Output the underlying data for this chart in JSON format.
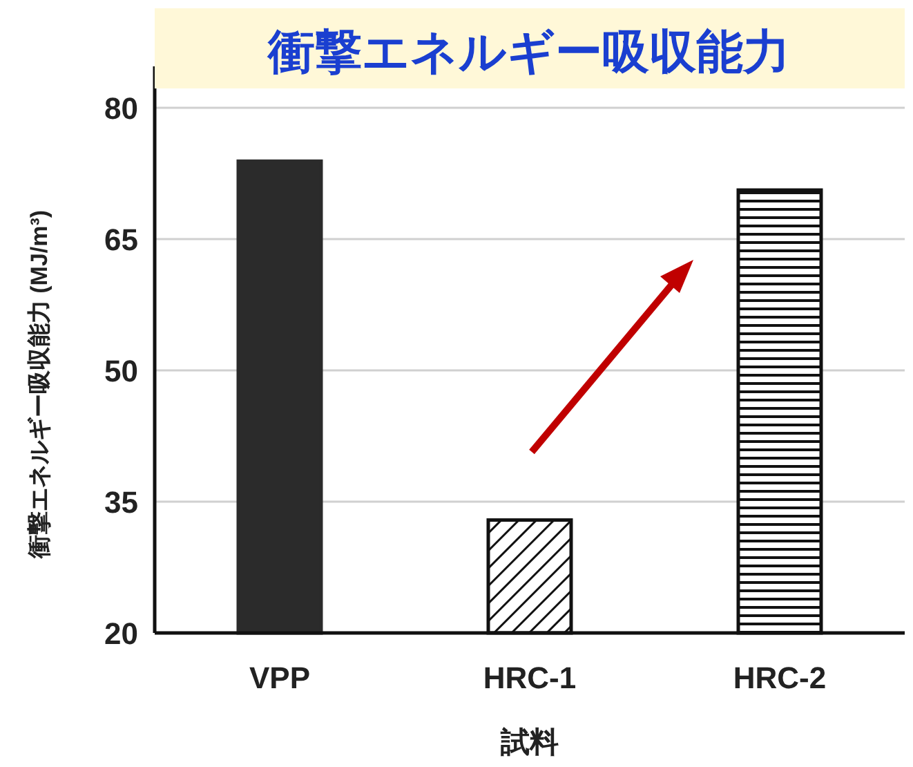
{
  "chart_data": {
    "type": "bar",
    "title": "衝撃エネルギー吸収能力",
    "xlabel": "試料",
    "ylabel": "衝撃エネルギー吸収能力 (MJ/m³)",
    "categories": [
      "VPP",
      "HRC-1",
      "HRC-2"
    ],
    "values": [
      73.9,
      32.9,
      70.6
    ],
    "colors": [
      "#2b2b2b",
      "#111111",
      "#111111"
    ],
    "ylim": [
      20,
      80
    ],
    "yticks": [
      20,
      35,
      50,
      65,
      80
    ],
    "grid": "y"
  }
}
